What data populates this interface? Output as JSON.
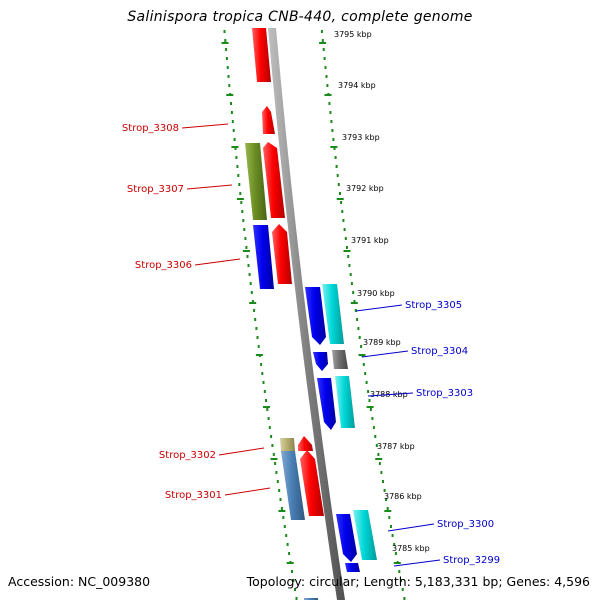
{
  "title": "Salinispora tropica CNB-440, complete genome",
  "footer": {
    "accession": "Accession: NC_009380",
    "topology": "Topology: circular; Length: 5,183,331 bp; Genes: 4,596"
  },
  "colors": {
    "forward_strand_green": "#1a8a1a",
    "backbone_gray": "#808080",
    "left_label_red": "#cc0000",
    "right_label_blue": "#0000cc",
    "gene_red": "#ff0000",
    "gene_blue": "#0000ee",
    "gene_cyan": "#00d0d0",
    "gene_olive": "#6b8e23",
    "gene_gray": "#707070",
    "gene_khaki": "#b8b070",
    "gene_steelblue": "#4a7fb5"
  },
  "kbp_ticks": [
    "3795 kbp",
    "3794 kbp",
    "3793 kbp",
    "3792 kbp",
    "3791 kbp",
    "3790 kbp",
    "3789 kbp",
    "3788 kbp",
    "3787 kbp",
    "3786 kbp",
    "3785 kbp"
  ],
  "left_labels": [
    "Strop_3308",
    "Strop_3307",
    "Strop_3306",
    "Strop_3302",
    "Strop_3301"
  ],
  "right_labels": [
    "Strop_3305",
    "Strop_3304",
    "Strop_3303",
    "Strop_3300",
    "Strop_3299"
  ]
}
